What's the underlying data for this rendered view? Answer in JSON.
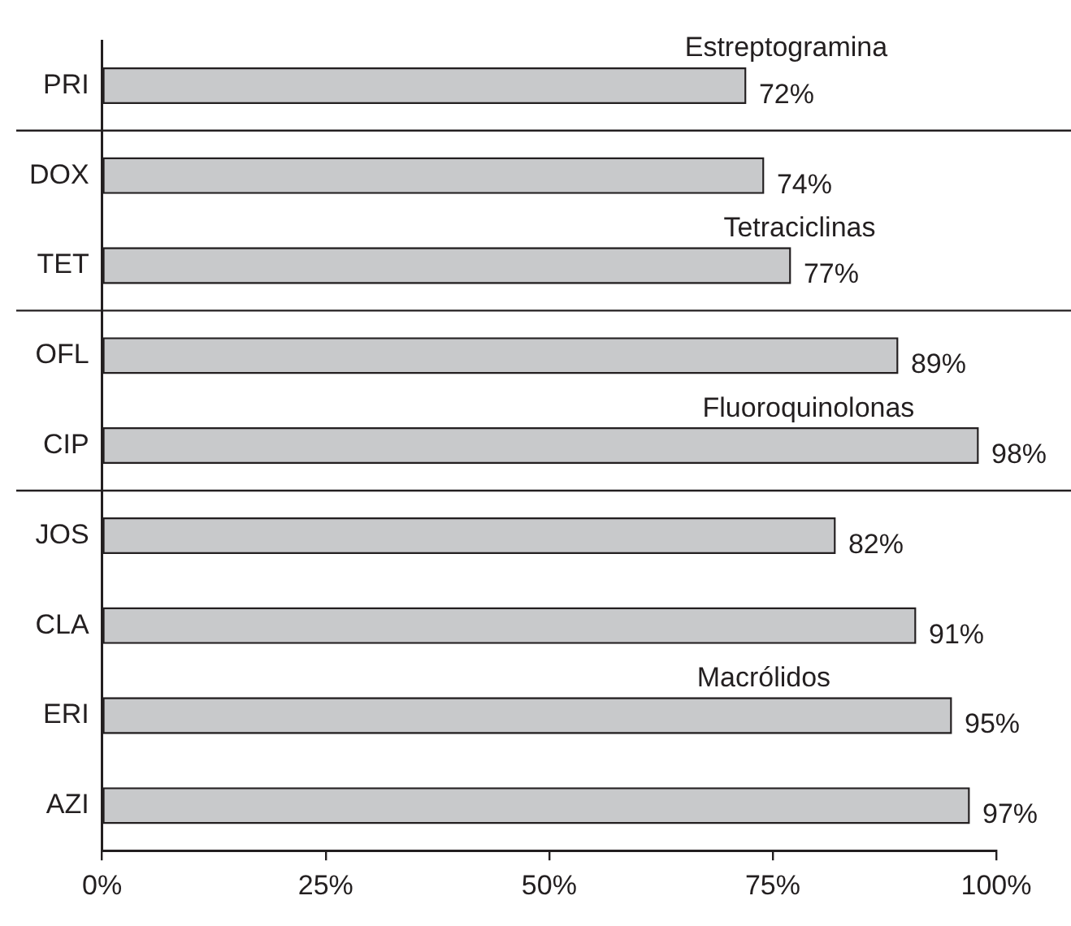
{
  "chart_data": {
    "type": "bar",
    "orientation": "horizontal",
    "categories": [
      "PRI",
      "DOX",
      "TET",
      "OFL",
      "CIP",
      "JOS",
      "CLA",
      "ERI",
      "AZI"
    ],
    "values": [
      72,
      74,
      77,
      89,
      98,
      82,
      91,
      95,
      97
    ],
    "value_labels": [
      "72%",
      "74%",
      "77%",
      "89%",
      "98%",
      "82%",
      "91%",
      "95%",
      "97%"
    ],
    "color": "#c8c9cb",
    "xlim": [
      0,
      100
    ],
    "xticks": [
      {
        "value": 0,
        "label": "0%"
      },
      {
        "value": 25,
        "label": "25%"
      },
      {
        "value": 50,
        "label": "50%"
      },
      {
        "value": 75,
        "label": "75%"
      },
      {
        "value": 100,
        "label": "100%"
      }
    ],
    "grid": false,
    "legend": false,
    "annotations": [
      "Estreptogramina",
      "Tetraciclinas",
      "Fluoroquinolonas",
      "Macrólidos"
    ]
  }
}
